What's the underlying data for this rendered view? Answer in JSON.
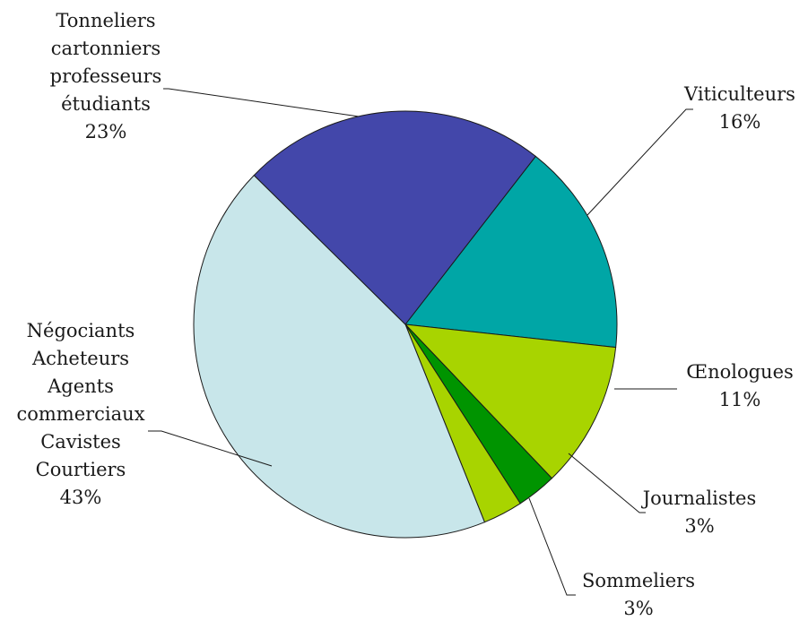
{
  "chart_data": {
    "type": "pie",
    "title": "",
    "legend": "none",
    "slices": [
      {
        "label_lines": [
          "Viticulteurs"
        ],
        "percent_label": "16%",
        "value": 16,
        "color": "#00A6A6"
      },
      {
        "label_lines": [
          "Œnologues"
        ],
        "percent_label": "11%",
        "value": 11,
        "color": "#A8D400"
      },
      {
        "label_lines": [
          "Journalistes"
        ],
        "percent_label": "3%",
        "value": 3,
        "color": "#009400"
      },
      {
        "label_lines": [
          "Sommeliers"
        ],
        "percent_label": "3%",
        "value": 3,
        "color": "#A8D400"
      },
      {
        "label_lines": [
          "Négociants",
          "Acheteurs",
          "Agents",
          "commerciaux",
          "Cavistes",
          "Courtiers"
        ],
        "percent_label": "43%",
        "value": 43,
        "color": "#C8E6EA"
      },
      {
        "label_lines": [
          "Tonneliers",
          "cartonniers",
          "professeurs",
          "étudiants"
        ],
        "percent_label": "23%",
        "value": 23,
        "color": "#4347AA"
      }
    ]
  }
}
